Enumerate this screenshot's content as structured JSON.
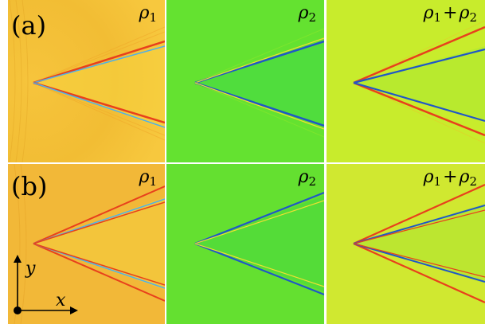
{
  "rows": [
    {
      "label": "(a)"
    },
    {
      "label": "(b)"
    }
  ],
  "panel_labels": {
    "rho1": {
      "symbol": "ρ",
      "sub": "1"
    },
    "rho2": {
      "symbol": "ρ",
      "sub": "2"
    },
    "sum": {
      "symbol_a": "ρ",
      "sub_a": "1",
      "plus": "+",
      "symbol_b": "ρ",
      "sub_b": "2"
    }
  },
  "axes": {
    "x_label": "x",
    "y_label": "y"
  },
  "colors": {
    "rho1_background": "#f4c23a",
    "rho2_background": "#62e02e",
    "sum_background": "#c8ec28",
    "wake_stripe_red": "#e8401c",
    "wake_stripe_blue": "#1f57c8"
  }
}
